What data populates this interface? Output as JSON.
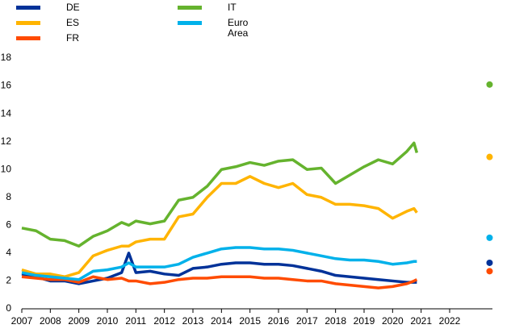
{
  "chart_data": {
    "type": "line",
    "x": [
      2007,
      2007.5,
      2008,
      2008.5,
      2009,
      2009.5,
      2010,
      2010.5,
      2010.75,
      2011,
      2011.5,
      2012,
      2012.5,
      2013,
      2013.5,
      2014,
      2014.5,
      2015,
      2015.5,
      2016,
      2016.5,
      2017,
      2017.5,
      2018,
      2018.5,
      2019,
      2019.5,
      2020,
      2020.5,
      2020.75,
      2020.85
    ],
    "series": [
      {
        "name": "DE",
        "color": "#003299",
        "values": [
          2.5,
          2.3,
          2.0,
          2.0,
          1.8,
          2.0,
          2.2,
          2.6,
          4.0,
          2.6,
          2.7,
          2.5,
          2.4,
          2.9,
          3.0,
          3.2,
          3.3,
          3.3,
          3.2,
          3.2,
          3.1,
          2.9,
          2.7,
          2.4,
          2.3,
          2.2,
          2.1,
          2.0,
          1.9,
          1.9,
          1.9
        ],
        "end_point": {
          "x": 2023.4,
          "value": 3.3
        }
      },
      {
        "name": "ES",
        "color": "#ffb400",
        "values": [
          2.8,
          2.5,
          2.5,
          2.3,
          2.6,
          3.8,
          4.2,
          4.5,
          4.5,
          4.8,
          5.0,
          5.0,
          6.6,
          6.8,
          8.0,
          9.0,
          9.0,
          9.5,
          9.0,
          8.7,
          9.0,
          8.2,
          8.0,
          7.5,
          7.5,
          7.4,
          7.2,
          6.5,
          7.0,
          7.2,
          6.9
        ],
        "end_point": {
          "x": 2023.4,
          "value": 10.9
        }
      },
      {
        "name": "FR",
        "color": "#ff4b00",
        "values": [
          2.3,
          2.2,
          2.1,
          2.1,
          1.9,
          2.3,
          2.1,
          2.2,
          2.0,
          2.0,
          1.8,
          1.9,
          2.1,
          2.2,
          2.2,
          2.3,
          2.3,
          2.3,
          2.2,
          2.2,
          2.1,
          2.0,
          2.0,
          1.8,
          1.7,
          1.6,
          1.5,
          1.6,
          1.8,
          2.0,
          2.1
        ],
        "end_point": {
          "x": 2023.4,
          "value": 2.7
        }
      },
      {
        "name": "IT",
        "color": "#65b32e",
        "values": [
          5.8,
          5.6,
          5.0,
          4.9,
          4.5,
          5.2,
          5.6,
          6.2,
          6.0,
          6.3,
          6.1,
          6.3,
          7.8,
          8.0,
          8.8,
          10.0,
          10.2,
          10.5,
          10.3,
          10.6,
          10.7,
          10.0,
          10.1,
          9.0,
          9.6,
          10.2,
          10.7,
          10.4,
          11.3,
          11.9,
          11.2
        ],
        "end_point": {
          "x": 2023.4,
          "value": 16.1
        }
      },
      {
        "name": "Euro Area",
        "color": "#00b1ea",
        "values": [
          2.6,
          2.4,
          2.3,
          2.2,
          2.1,
          2.7,
          2.8,
          3.0,
          3.3,
          3.0,
          3.0,
          3.0,
          3.2,
          3.7,
          4.0,
          4.3,
          4.4,
          4.4,
          4.3,
          4.3,
          4.2,
          4.0,
          3.8,
          3.6,
          3.5,
          3.5,
          3.4,
          3.2,
          3.3,
          3.4,
          3.4
        ],
        "end_point": {
          "x": 2023.4,
          "value": 5.1
        }
      }
    ],
    "xlim": [
      2007,
      2023.5
    ],
    "xticks": [
      2007,
      2008,
      2009,
      2010,
      2011,
      2012,
      2013,
      2014,
      2015,
      2016,
      2017,
      2018,
      2019,
      2020,
      2021,
      2022
    ],
    "ylim": [
      0,
      18
    ],
    "yticks": [
      0,
      2,
      4,
      6,
      8,
      10,
      12,
      14,
      16,
      18
    ],
    "grid": false
  }
}
